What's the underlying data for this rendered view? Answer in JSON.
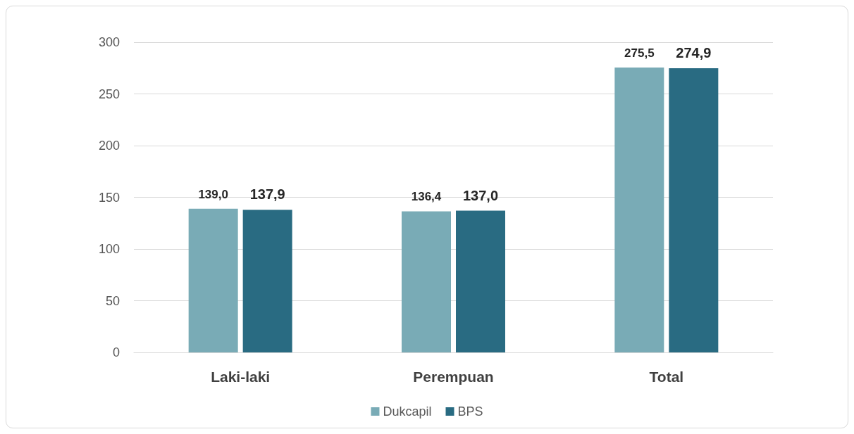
{
  "chart_data": {
    "type": "bar",
    "categories": [
      "Laki-laki",
      "Perempuan",
      "Total"
    ],
    "series": [
      {
        "name": "Dukcapil",
        "color": "#79abb6",
        "values": [
          139.0,
          136.4,
          275.5
        ],
        "value_labels": [
          "139,0",
          "136,4",
          "275,5"
        ]
      },
      {
        "name": "BPS",
        "color": "#296b82",
        "values": [
          137.9,
          137.0,
          274.9
        ],
        "value_labels": [
          "137,9",
          "137,0",
          "274,9"
        ]
      }
    ],
    "ylim": [
      0,
      300
    ],
    "yticks": [
      0,
      50,
      100,
      150,
      200,
      250,
      300
    ],
    "grid": "y",
    "legend": "bottom"
  }
}
